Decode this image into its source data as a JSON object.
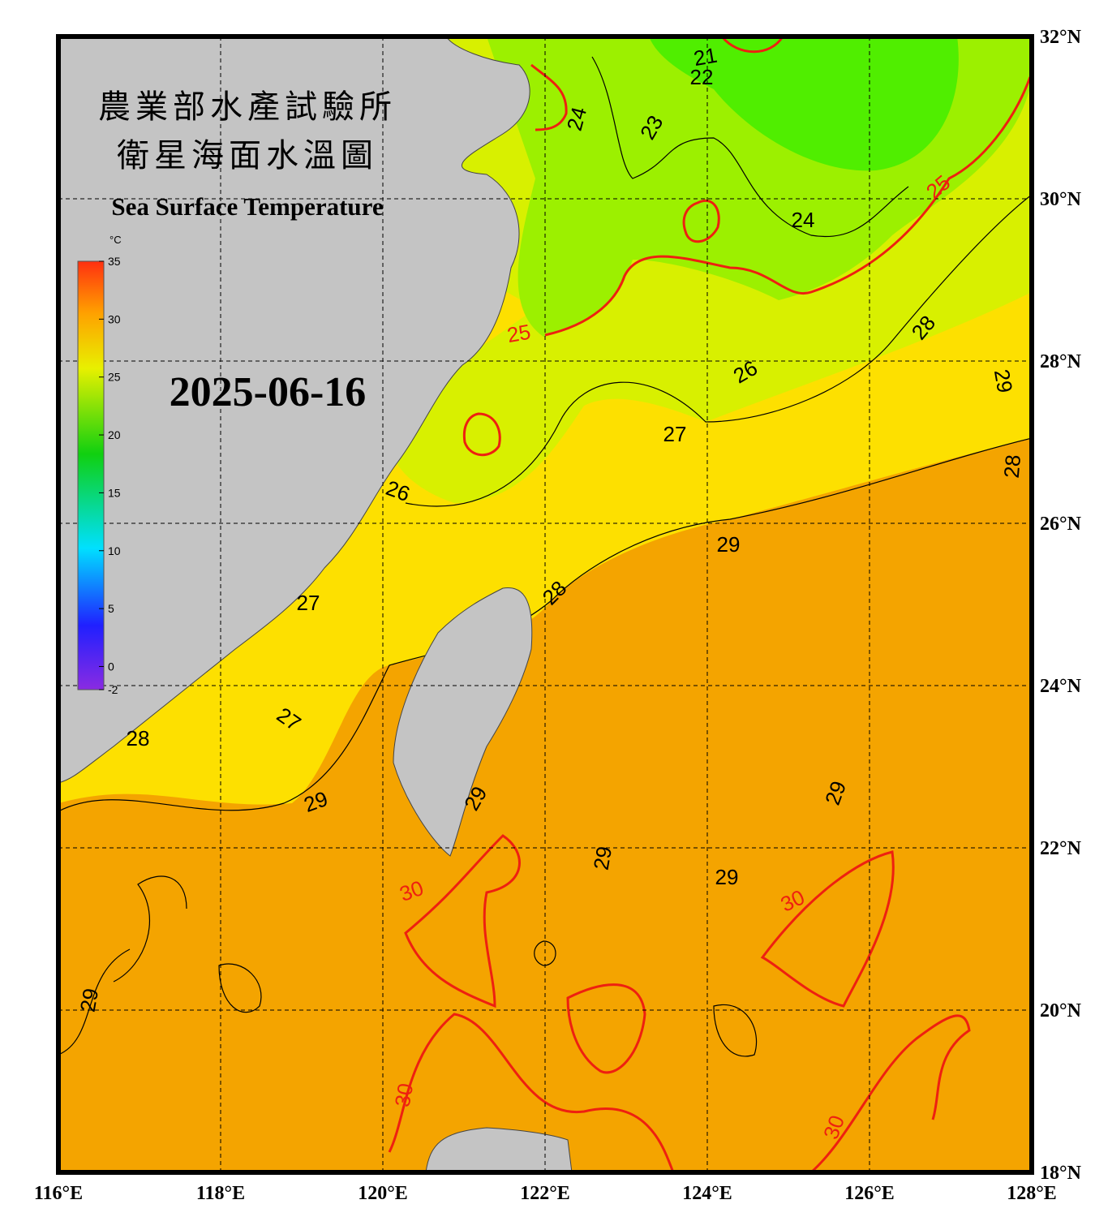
{
  "map": {
    "title_zh_1": "農業部水產試驗所",
    "title_zh_2": "衛星海面水溫圖",
    "title_en": "Sea Surface Temperature",
    "date": "2025-06-16",
    "colorbar": {
      "unit": "°C",
      "lim": [
        -2,
        35
      ],
      "ticks": [
        -2,
        0,
        5,
        10,
        15,
        20,
        25,
        30,
        35
      ]
    },
    "lon_lim": [
      116,
      128
    ],
    "lat_lim": [
      18,
      32
    ],
    "lon_ticks": [
      {
        "value": 116,
        "label": "116°E"
      },
      {
        "value": 118,
        "label": "118°E"
      },
      {
        "value": 120,
        "label": "120°E"
      },
      {
        "value": 122,
        "label": "122°E"
      },
      {
        "value": 124,
        "label": "124°E"
      },
      {
        "value": 126,
        "label": "126°E"
      },
      {
        "value": 128,
        "label": "128°E"
      }
    ],
    "lat_ticks": [
      {
        "value": 18,
        "label": "18°N"
      },
      {
        "value": 20,
        "label": "20°N"
      },
      {
        "value": 22,
        "label": "22°N"
      },
      {
        "value": 24,
        "label": "24°N"
      },
      {
        "value": 26,
        "label": "26°N"
      },
      {
        "value": 28,
        "label": "28°N"
      },
      {
        "value": 30,
        "label": "30°N"
      },
      {
        "value": 32,
        "label": "32°N"
      }
    ],
    "contour_labels": [
      "21",
      "22",
      "24",
      "23",
      "25",
      "24",
      "25",
      "28",
      "26",
      "29",
      "27",
      "28",
      "26",
      "29",
      "28",
      "27",
      "27",
      "28",
      "29",
      "29",
      "29",
      "29",
      "29",
      "30",
      "30",
      "29",
      "30",
      "30"
    ]
  }
}
